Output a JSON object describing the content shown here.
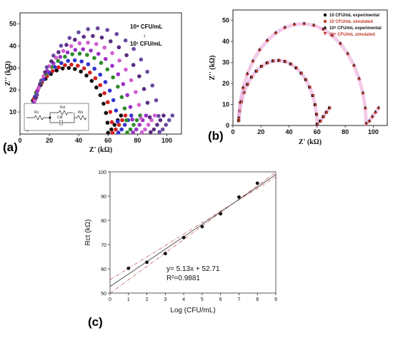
{
  "chart_data": [
    {
      "panel": "(a)",
      "type": "scatter",
      "xlabel": "Z' (kΩ)",
      "ylabel": "Z'' (kΩ)",
      "xlim": [
        0,
        110
      ],
      "ylim": [
        0,
        55
      ],
      "xticks": [
        "0",
        "20",
        "40",
        "60",
        "80",
        "100"
      ],
      "yticks": [
        "10",
        "20",
        "30",
        "40",
        "50"
      ],
      "annotation_top": "10⁸ CFU/mL",
      "annotation_arrow": "↑",
      "annotation_bottom": "10¹ CFU/mL",
      "circuit_labels": [
        "Rs",
        "Rct",
        "Ws",
        "Cdl"
      ],
      "series": [
        {
          "rct": 60,
          "peak": 30,
          "color": "#111111"
        },
        {
          "rct": 63,
          "peak": 31.5,
          "color": "#d42020"
        },
        {
          "rct": 67,
          "peak": 33.5,
          "color": "#3333cc"
        },
        {
          "rct": 73,
          "peak": 36.5,
          "color": "#2e8b2e"
        },
        {
          "rct": 77,
          "peak": 38.5,
          "color": "#9b30c8"
        },
        {
          "rct": 83,
          "peak": 41.5,
          "color": "#d060d0"
        },
        {
          "rct": 89,
          "peak": 44.5,
          "color": "#5a2d82"
        },
        {
          "rct": 95,
          "peak": 48,
          "color": "#6a4aa0"
        }
      ]
    },
    {
      "panel": "(b)",
      "type": "scatter",
      "xlabel": "Z' (kΩ)",
      "ylabel": "Z'' (kΩ)",
      "xlim": [
        0,
        110
      ],
      "ylim": [
        0,
        55
      ],
      "xticks": [
        "0",
        "20",
        "40",
        "60",
        "80",
        "100"
      ],
      "yticks": [
        "0",
        "10",
        "20",
        "30",
        "40",
        "50"
      ],
      "legend": [
        "10 CFU/mL experimental",
        "10 CFU/mL simulated",
        "10⁸ CFU/mL experimental",
        "10⁸ CFU/mL simulated"
      ],
      "legend_colors": [
        "#111111",
        "#c0392b",
        "#111111",
        "#c0392b"
      ],
      "series": [
        {
          "rct": 60,
          "peak": 31,
          "color": "#111111"
        },
        {
          "rct": 95,
          "peak": 48.5,
          "color": "#111111"
        }
      ]
    },
    {
      "panel": "(c)",
      "type": "scatter",
      "xlabel": "Log (CFU/mL)",
      "ylabel": "Rct (kΩ)",
      "xlim": [
        0,
        9
      ],
      "ylim": [
        50,
        100
      ],
      "xticks": [
        "0",
        "1",
        "2",
        "3",
        "4",
        "5",
        "6",
        "7",
        "8",
        "9"
      ],
      "yticks": [
        "50",
        "60",
        "70",
        "80",
        "90",
        "100"
      ],
      "x": [
        1,
        2,
        3,
        4,
        5,
        6,
        7,
        8
      ],
      "y": [
        60.2,
        62.7,
        66.3,
        72.9,
        77.4,
        82.7,
        89.6,
        95.3
      ],
      "fit_slope": 5.13,
      "fit_intercept": 52.71,
      "equation": "y= 5.13x + 52.71",
      "r_squared": "R²=0.9881",
      "line_color": "#444444",
      "band_color": "#c06060"
    }
  ]
}
